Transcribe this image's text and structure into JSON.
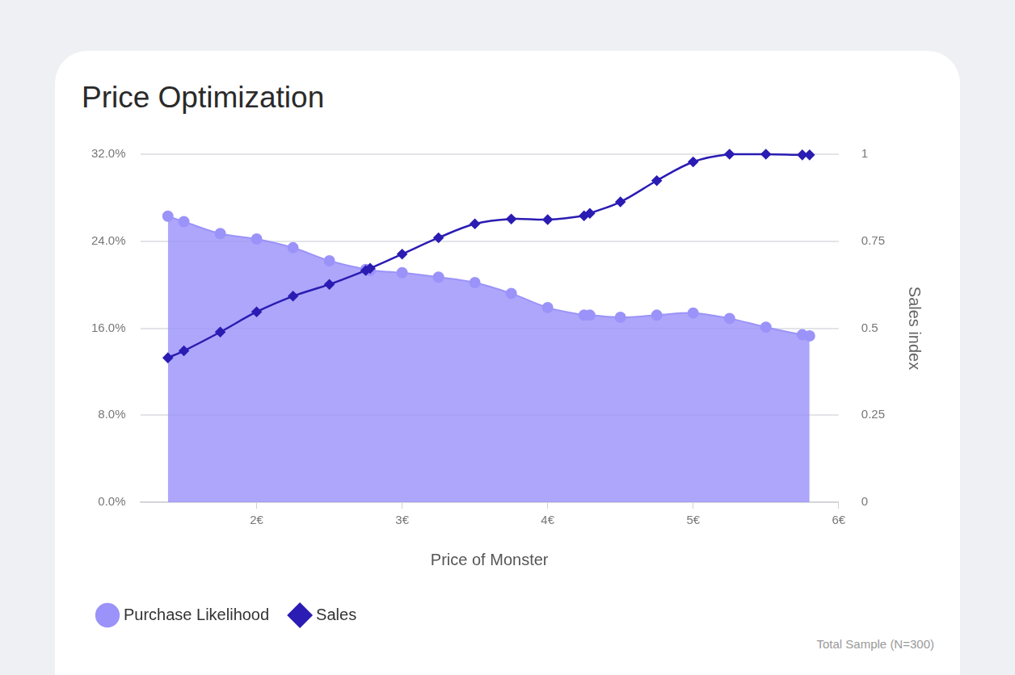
{
  "chart_data": {
    "type": "line",
    "title": "Price Optimization",
    "x_label": "Price of Monster",
    "y2_label": "Sales index",
    "footnote": "Total Sample (N=300)",
    "x": [
      1.39,
      1.5,
      1.75,
      2.0,
      2.25,
      2.5,
      2.75,
      2.78,
      3.0,
      3.25,
      3.5,
      3.75,
      4.0,
      4.25,
      4.29,
      4.5,
      4.75,
      5.0,
      5.25,
      5.5,
      5.75,
      5.8
    ],
    "series": [
      {
        "name": "Purchase Likelihood",
        "type": "area",
        "marker": "circle",
        "color": "#9b93f9",
        "axis": "y",
        "values": [
          26.3,
          25.8,
          24.7,
          24.2,
          23.4,
          22.2,
          21.4,
          21.3,
          21.1,
          20.7,
          20.2,
          19.2,
          17.9,
          17.2,
          17.2,
          17.0,
          17.2,
          17.4,
          16.9,
          16.1,
          15.4,
          15.3
        ]
      },
      {
        "name": "Sales",
        "type": "line",
        "marker": "diamond",
        "color": "#2b1cb3",
        "axis": "y2",
        "values": [
          0.415,
          0.435,
          0.489,
          0.547,
          0.592,
          0.626,
          0.666,
          0.672,
          0.713,
          0.76,
          0.8,
          0.814,
          0.812,
          0.823,
          0.83,
          0.863,
          0.924,
          0.978,
          1.0,
          1.0,
          0.998,
          0.998
        ]
      }
    ],
    "xlim": [
      1.2,
      6
    ],
    "xticks": [
      {
        "value": 2,
        "label": "2€"
      },
      {
        "value": 3,
        "label": "3€"
      },
      {
        "value": 4,
        "label": "4€"
      },
      {
        "value": 5,
        "label": "5€"
      },
      {
        "value": 6,
        "label": "6€"
      }
    ],
    "ylim": [
      0,
      32
    ],
    "yticks": [
      {
        "value": 0,
        "label": "0.0%"
      },
      {
        "value": 8,
        "label": "8.0%"
      },
      {
        "value": 16,
        "label": "16.0%"
      },
      {
        "value": 24,
        "label": "24.0%"
      },
      {
        "value": 32,
        "label": "32.0%"
      }
    ],
    "y2lim": [
      0,
      1
    ],
    "y2ticks": [
      0,
      0.25,
      0.5,
      0.75,
      1
    ],
    "grid": true,
    "legend": "bottom-left"
  }
}
